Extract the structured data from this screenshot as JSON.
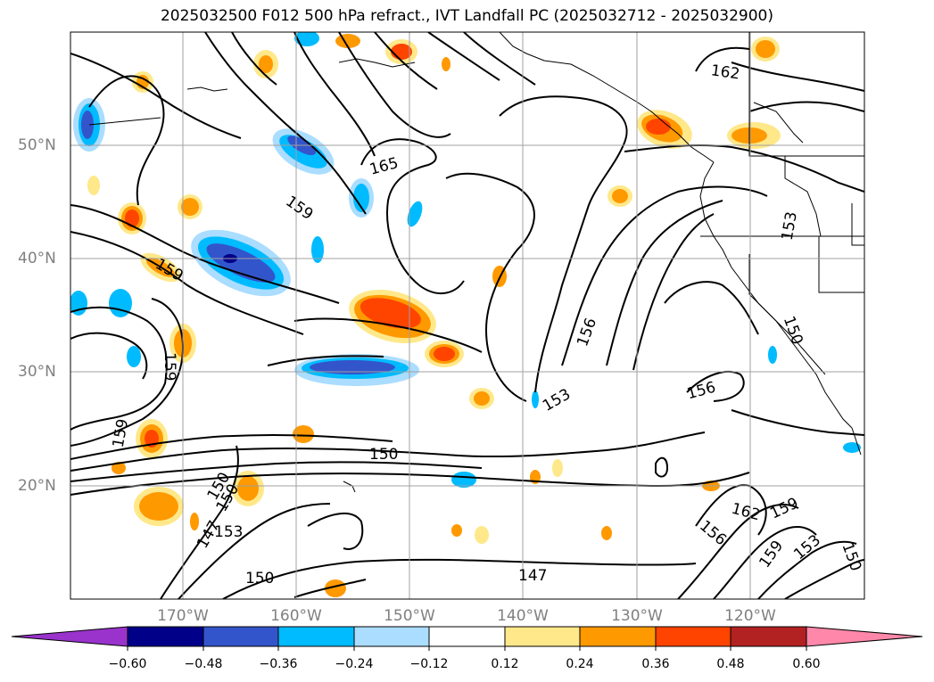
{
  "title": "2025032500 F012 500 hPa refract., IVT Landfall PC (2025032712 - 2025032900)",
  "lat_labels": [
    "50°N",
    "40°N",
    "30°N",
    "20°N"
  ],
  "lon_labels": [
    "170°W",
    "160°W",
    "150°W",
    "140°W",
    "130°W",
    "120°W"
  ],
  "colorbar": {
    "ticks": [
      "−0.60",
      "−0.48",
      "−0.36",
      "−0.24",
      "−0.12",
      "0.12",
      "0.24",
      "0.36",
      "0.48",
      "0.60"
    ],
    "colors": [
      "#9933cc",
      "#000088",
      "#3355cc",
      "#00bbff",
      "#aaddff",
      "#ffffff",
      "#ffe88a",
      "#ff9900",
      "#ff4400",
      "#b22222",
      "#ff88aa"
    ]
  },
  "contour_labels": [
    "162",
    "165",
    "159",
    "159",
    "153",
    "150",
    "159",
    "156",
    "153",
    "156",
    "150",
    "159",
    "150",
    "150",
    "147",
    "153",
    "150",
    "147",
    "162",
    "159",
    "156",
    "153",
    "150",
    "159"
  ]
}
